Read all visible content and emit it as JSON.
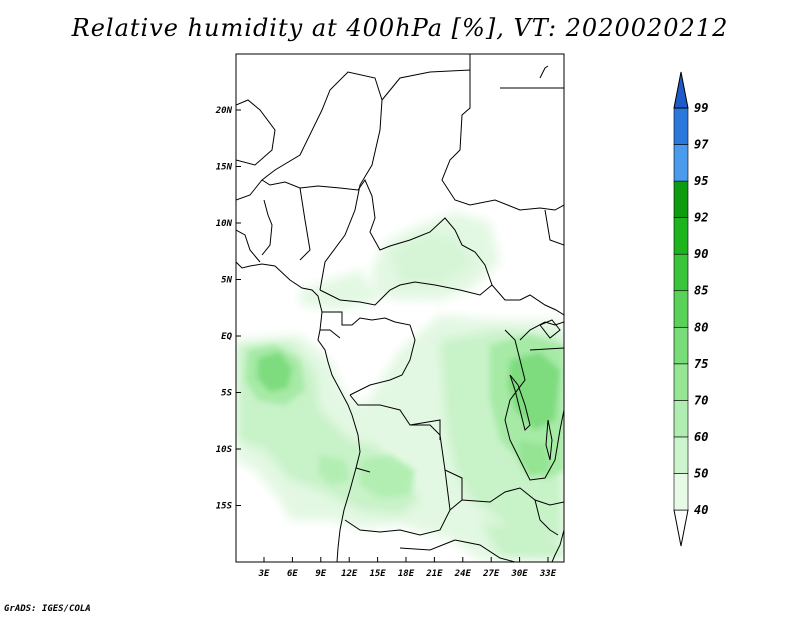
{
  "title": "Relative humidity at 400hPa [%], VT: 2020020212",
  "credit": "GrADS: IGES/COLA",
  "map": {
    "lat_labels": [
      "20N",
      "15N",
      "10N",
      "5N",
      "EQ",
      "5S",
      "10S",
      "15S"
    ],
    "lon_labels": [
      "3E",
      "6E",
      "9E",
      "12E",
      "15E",
      "18E",
      "21E",
      "24E",
      "27E",
      "30E",
      "33E"
    ],
    "lon_range": [
      0,
      35
    ],
    "lat_range": [
      -20,
      25
    ]
  },
  "colorbar": {
    "levels": [
      "40",
      "50",
      "60",
      "70",
      "75",
      "80",
      "85",
      "90",
      "92",
      "95",
      "97",
      "99"
    ],
    "colors": [
      "#ffffff",
      "#e6fae6",
      "#cdf5cd",
      "#b0edb0",
      "#96e696",
      "#78dc78",
      "#5ad25a",
      "#3cc33c",
      "#1eb41e",
      "#0f9b0f",
      "#4a9bec",
      "#2a78dc",
      "#1e5ac8"
    ]
  }
}
